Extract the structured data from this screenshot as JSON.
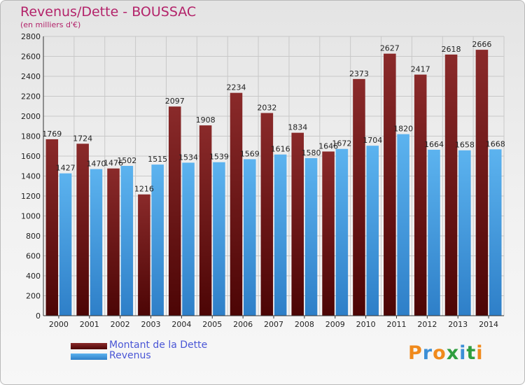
{
  "title": "Revenus/Dette - BOUSSAC",
  "subtitle": "(en milliers d'€)",
  "brand": {
    "text": "Proxiti",
    "letters": [
      "P",
      "r",
      "o",
      "x",
      "i",
      "t",
      "i"
    ],
    "letter_colors": [
      "#f08a1c",
      "#3c8fd6",
      "#f08a1c",
      "#2f9e3f",
      "#3c8fd6",
      "#2f9e3f",
      "#f08a1c"
    ]
  },
  "colors": {
    "dette_top": "#8a2a2a",
    "dette_bottom": "#4c0505",
    "revenus_top": "#5cb3ef",
    "revenus_bottom": "#2e7fc8",
    "grid": "#c8c8c8",
    "title": "#b3236a"
  },
  "legend": {
    "dette_label": "Montant de la Dette",
    "revenus_label": "Revenus"
  },
  "chart_data": {
    "type": "bar",
    "title": "Revenus/Dette - BOUSSAC",
    "subtitle": "(en milliers d'€)",
    "xlabel": "",
    "ylabel": "",
    "ylim": [
      0,
      2800
    ],
    "yticks": [
      0,
      200,
      400,
      600,
      800,
      1000,
      1200,
      1400,
      1600,
      1800,
      2000,
      2200,
      2400,
      2600,
      2800
    ],
    "grid": true,
    "legend_position": "bottom-left",
    "categories": [
      "2000",
      "2001",
      "2002",
      "2003",
      "2004",
      "2005",
      "2006",
      "2007",
      "2008",
      "2009",
      "2010",
      "2011",
      "2012",
      "2013",
      "2014"
    ],
    "series": [
      {
        "name": "Montant de la Dette",
        "values": [
          1769,
          1724,
          1476,
          1216,
          2097,
          1908,
          2234,
          2032,
          1834,
          1646,
          2373,
          2627,
          2417,
          2618,
          2666
        ]
      },
      {
        "name": "Revenus",
        "values": [
          1427,
          1470,
          1502,
          1515,
          1534,
          1539,
          1569,
          1616,
          1580,
          1672,
          1704,
          1820,
          1664,
          1658,
          1668
        ]
      }
    ]
  }
}
